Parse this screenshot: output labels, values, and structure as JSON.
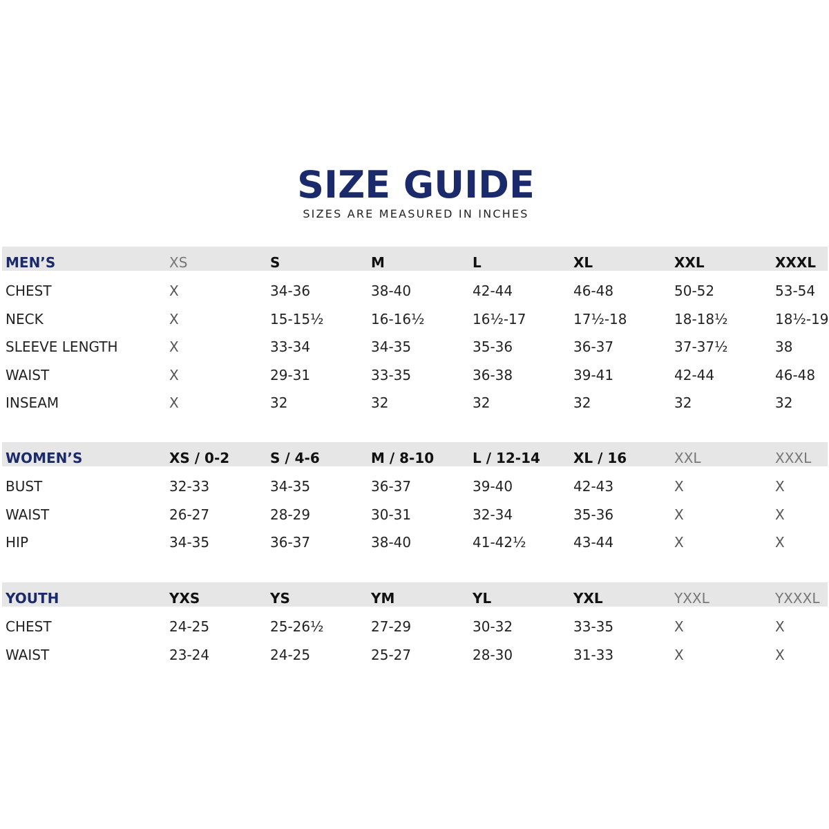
{
  "title": "SIZE GUIDE",
  "subtitle": "SIZES ARE MEASURED IN INCHES",
  "colors": {
    "title": "#1b2a6b",
    "band": "#e6e6e6"
  },
  "sections": [
    {
      "header": [
        "MEN’S",
        "XS",
        "S",
        "M",
        "L",
        "XL",
        "XXL",
        "XXXL"
      ],
      "dim_columns": [
        1
      ],
      "rows": [
        [
          "CHEST",
          "X",
          "34-36",
          "38-40",
          "42-44",
          "46-48",
          "50-52",
          "53-54"
        ],
        [
          "NECK",
          "X",
          "15-15½",
          "16-16½",
          "16½-17",
          "17½-18",
          "18-18½",
          "18½-19"
        ],
        [
          "SLEEVE LENGTH",
          "X",
          "33-34",
          "34-35",
          "35-36",
          "36-37",
          "37-37½",
          "38"
        ],
        [
          "WAIST",
          "X",
          "29-31",
          "33-35",
          "36-38",
          "39-41",
          "42-44",
          "46-48"
        ],
        [
          "INSEAM",
          "X",
          "32",
          "32",
          "32",
          "32",
          "32",
          "32"
        ]
      ]
    },
    {
      "header": [
        "WOMEN’S",
        "XS / 0-2",
        "S / 4-6",
        "M / 8-10",
        "L / 12-14",
        "XL / 16",
        "XXL",
        "XXXL"
      ],
      "dim_columns": [
        6,
        7
      ],
      "rows": [
        [
          "BUST",
          "32-33",
          "34-35",
          "36-37",
          "39-40",
          "42-43",
          "X",
          "X"
        ],
        [
          "WAIST",
          "26-27",
          "28-29",
          "30-31",
          "32-34",
          "35-36",
          "X",
          "X"
        ],
        [
          "HIP",
          "34-35",
          "36-37",
          "38-40",
          "41-42½",
          "43-44",
          "X",
          "X"
        ]
      ]
    },
    {
      "header": [
        "YOUTH",
        "YXS",
        "YS",
        "YM",
        "YL",
        "YXL",
        "YXXL",
        "YXXXL"
      ],
      "dim_columns": [
        6,
        7
      ],
      "rows": [
        [
          "CHEST",
          "24-25",
          "25-26½",
          "27-29",
          "30-32",
          "33-35",
          "X",
          "X"
        ],
        [
          "WAIST",
          "23-24",
          "24-25",
          "25-27",
          "28-30",
          "31-33",
          "X",
          "X"
        ]
      ]
    }
  ]
}
